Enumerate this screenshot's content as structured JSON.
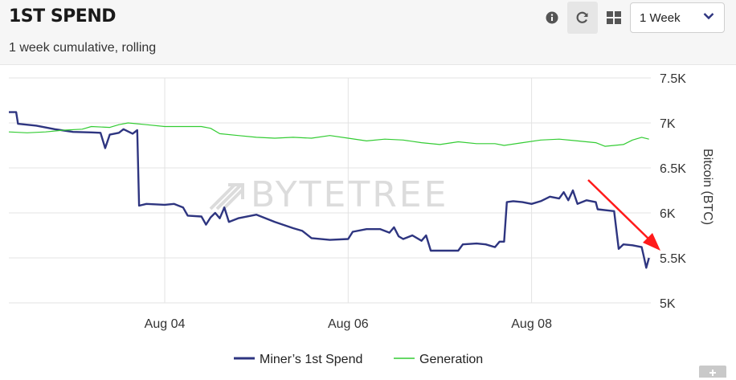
{
  "header": {
    "title": "1ST SPEND",
    "subtitle": "1 week cumulative, rolling",
    "period_select": {
      "value": "1 Week"
    },
    "icons": [
      "info-icon",
      "refresh-icon",
      "grid-icon",
      "chevron-down-icon"
    ]
  },
  "watermark": "BYTETREE",
  "colors": {
    "miner": "#2e3580",
    "generation": "#33cc33",
    "arrow": "#ff1a1a"
  },
  "chart_data": {
    "type": "line",
    "ylabel": "Bitcoin (BTC)",
    "ylim": [
      5000,
      7500
    ],
    "yticks": [
      {
        "value": 7500,
        "label": "7.5K"
      },
      {
        "value": 7000,
        "label": "7K"
      },
      {
        "value": 6500,
        "label": "6.5K"
      },
      {
        "value": 6000,
        "label": "6K"
      },
      {
        "value": 5500,
        "label": "5.5K"
      },
      {
        "value": 5000,
        "label": "5K"
      }
    ],
    "xlim": [
      2.3,
      9.3
    ],
    "xticks": [
      {
        "value": 4,
        "label": "Aug 04"
      },
      {
        "value": 6,
        "label": "Aug 06"
      },
      {
        "value": 8,
        "label": "Aug 08"
      }
    ],
    "grid": true,
    "legend_position": "bottom-center",
    "series": [
      {
        "name": "Miner’s 1st Spend",
        "color": "#2e3580",
        "points": [
          [
            2.3,
            7120
          ],
          [
            2.38,
            7120
          ],
          [
            2.4,
            6990
          ],
          [
            2.6,
            6970
          ],
          [
            2.8,
            6930
          ],
          [
            3.0,
            6900
          ],
          [
            3.2,
            6895
          ],
          [
            3.3,
            6890
          ],
          [
            3.35,
            6720
          ],
          [
            3.4,
            6870
          ],
          [
            3.5,
            6890
          ],
          [
            3.55,
            6930
          ],
          [
            3.65,
            6880
          ],
          [
            3.7,
            6920
          ],
          [
            3.72,
            6080
          ],
          [
            3.8,
            6100
          ],
          [
            4.0,
            6090
          ],
          [
            4.1,
            6100
          ],
          [
            4.2,
            6060
          ],
          [
            4.25,
            5970
          ],
          [
            4.4,
            5960
          ],
          [
            4.45,
            5870
          ],
          [
            4.5,
            5950
          ],
          [
            4.55,
            6000
          ],
          [
            4.6,
            5940
          ],
          [
            4.65,
            6060
          ],
          [
            4.7,
            5900
          ],
          [
            4.8,
            5940
          ],
          [
            5.0,
            5980
          ],
          [
            5.2,
            5900
          ],
          [
            5.4,
            5830
          ],
          [
            5.5,
            5800
          ],
          [
            5.6,
            5720
          ],
          [
            5.8,
            5700
          ],
          [
            6.0,
            5710
          ],
          [
            6.05,
            5790
          ],
          [
            6.2,
            5820
          ],
          [
            6.35,
            5820
          ],
          [
            6.45,
            5780
          ],
          [
            6.5,
            5840
          ],
          [
            6.55,
            5740
          ],
          [
            6.6,
            5710
          ],
          [
            6.7,
            5750
          ],
          [
            6.8,
            5690
          ],
          [
            6.85,
            5750
          ],
          [
            6.9,
            5580
          ],
          [
            7.0,
            5580
          ],
          [
            7.2,
            5580
          ],
          [
            7.25,
            5650
          ],
          [
            7.4,
            5660
          ],
          [
            7.5,
            5650
          ],
          [
            7.6,
            5620
          ],
          [
            7.65,
            5680
          ],
          [
            7.7,
            5680
          ],
          [
            7.73,
            6120
          ],
          [
            7.8,
            6130
          ],
          [
            7.9,
            6120
          ],
          [
            8.0,
            6100
          ],
          [
            8.1,
            6130
          ],
          [
            8.2,
            6180
          ],
          [
            8.3,
            6160
          ],
          [
            8.35,
            6230
          ],
          [
            8.4,
            6140
          ],
          [
            8.45,
            6250
          ],
          [
            8.5,
            6100
          ],
          [
            8.6,
            6140
          ],
          [
            8.7,
            6120
          ],
          [
            8.72,
            6040
          ],
          [
            8.9,
            6020
          ],
          [
            8.95,
            5600
          ],
          [
            9.0,
            5650
          ],
          [
            9.1,
            5640
          ],
          [
            9.2,
            5620
          ],
          [
            9.22,
            5530
          ],
          [
            9.25,
            5390
          ],
          [
            9.28,
            5500
          ]
        ]
      },
      {
        "name": "Generation",
        "color": "#33cc33",
        "points": [
          [
            2.3,
            6900
          ],
          [
            2.5,
            6890
          ],
          [
            2.7,
            6900
          ],
          [
            2.9,
            6920
          ],
          [
            3.1,
            6930
          ],
          [
            3.2,
            6960
          ],
          [
            3.4,
            6950
          ],
          [
            3.5,
            6980
          ],
          [
            3.6,
            7000
          ],
          [
            3.8,
            6980
          ],
          [
            4.0,
            6960
          ],
          [
            4.2,
            6960
          ],
          [
            4.4,
            6960
          ],
          [
            4.5,
            6940
          ],
          [
            4.6,
            6880
          ],
          [
            4.8,
            6860
          ],
          [
            5.0,
            6840
          ],
          [
            5.2,
            6830
          ],
          [
            5.4,
            6840
          ],
          [
            5.6,
            6830
          ],
          [
            5.8,
            6860
          ],
          [
            6.0,
            6830
          ],
          [
            6.2,
            6800
          ],
          [
            6.4,
            6820
          ],
          [
            6.6,
            6810
          ],
          [
            6.8,
            6780
          ],
          [
            7.0,
            6760
          ],
          [
            7.2,
            6790
          ],
          [
            7.4,
            6770
          ],
          [
            7.6,
            6770
          ],
          [
            7.7,
            6750
          ],
          [
            7.9,
            6780
          ],
          [
            8.1,
            6810
          ],
          [
            8.3,
            6820
          ],
          [
            8.5,
            6800
          ],
          [
            8.7,
            6780
          ],
          [
            8.8,
            6740
          ],
          [
            9.0,
            6760
          ],
          [
            9.1,
            6810
          ],
          [
            9.2,
            6840
          ],
          [
            9.28,
            6820
          ]
        ]
      }
    ]
  }
}
